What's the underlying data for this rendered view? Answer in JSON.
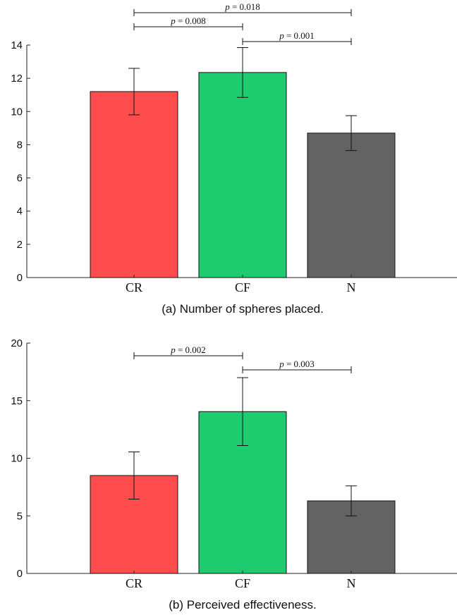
{
  "chart_data": [
    {
      "type": "bar",
      "caption": "(a) Number of spheres placed.",
      "categories": [
        "CR",
        "CF",
        "N"
      ],
      "values": [
        11.2,
        12.35,
        8.7
      ],
      "error": [
        1.4,
        1.5,
        1.05
      ],
      "colors": [
        "#ff4d4d",
        "#1ecb6e",
        "#636363"
      ],
      "ylim": [
        0,
        14
      ],
      "yticks": [
        0,
        2,
        4,
        6,
        8,
        10,
        12,
        14
      ],
      "significance": [
        {
          "from": 0,
          "to": 2,
          "label": "p = 0.018"
        },
        {
          "from": 0,
          "to": 1,
          "label": "p = 0.008"
        },
        {
          "from": 1,
          "to": 2,
          "label": "p = 0.001"
        }
      ]
    },
    {
      "type": "bar",
      "caption": "(b) Perceived effectiveness.",
      "categories": [
        "CR",
        "CF",
        "N"
      ],
      "values": [
        8.5,
        14.05,
        6.3
      ],
      "error": [
        2.05,
        2.95,
        1.3
      ],
      "colors": [
        "#ff4d4d",
        "#1ecb6e",
        "#636363"
      ],
      "ylim": [
        0,
        20
      ],
      "yticks": [
        0,
        5,
        10,
        15,
        20
      ],
      "significance": [
        {
          "from": 0,
          "to": 1,
          "label": "p = 0.002"
        },
        {
          "from": 1,
          "to": 2,
          "label": "p = 0.003"
        }
      ]
    }
  ]
}
